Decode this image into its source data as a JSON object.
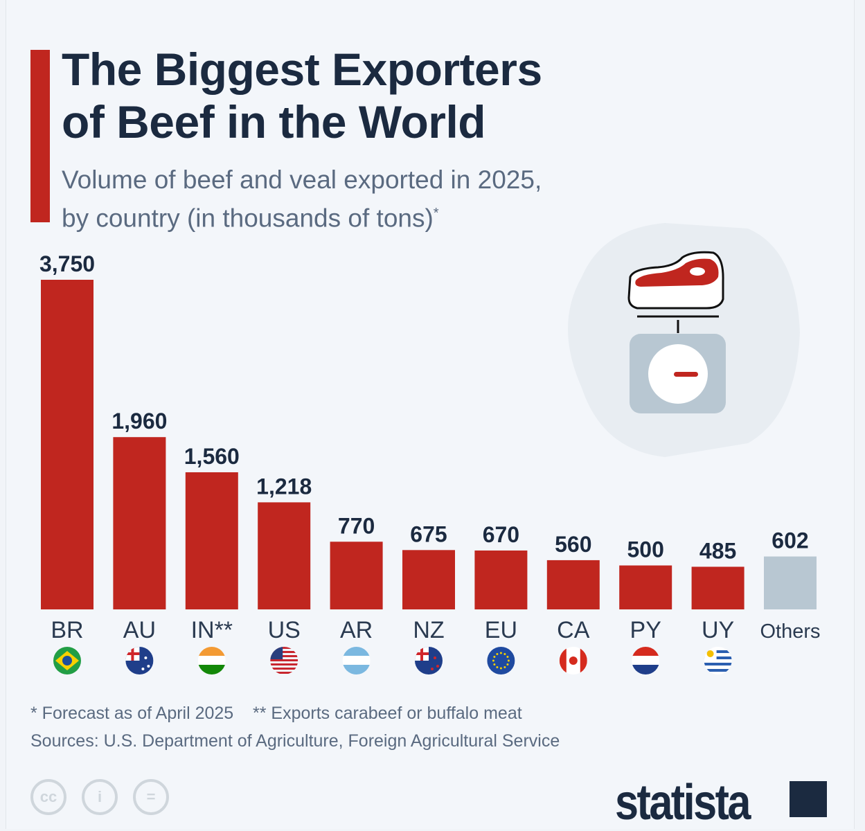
{
  "header": {
    "title_line1": "The Biggest Exporters",
    "title_line2": "of Beef in the World",
    "subtitle_line1": "Volume of beef and veal exported in 2025,",
    "subtitle_line2": "by country (in thousands of tons)",
    "subtitle_mark": "*"
  },
  "colors": {
    "accent": "#c0261f",
    "bar": "#c0261f",
    "others_bar": "#b8c7d2",
    "title": "#1b2a40"
  },
  "chart_data": {
    "type": "bar",
    "categories": [
      "BR",
      "AU",
      "IN**",
      "US",
      "AR",
      "NZ",
      "EU",
      "CA",
      "PY",
      "UY",
      "Others"
    ],
    "values": [
      3750,
      1960,
      1560,
      1218,
      770,
      675,
      670,
      560,
      500,
      485,
      602
    ],
    "value_labels": [
      "3,750",
      "1,960",
      "1,560",
      "1,218",
      "770",
      "675",
      "670",
      "560",
      "500",
      "485",
      "602"
    ],
    "flags": [
      "brazil-flag",
      "australia-flag",
      "india-flag",
      "usa-flag",
      "argentina-flag",
      "new-zealand-flag",
      "eu-flag",
      "canada-flag",
      "paraguay-flag",
      "uruguay-flag",
      null
    ],
    "unit": "thousands of tons",
    "grid": false,
    "title": "The Biggest Exporters of Beef in the World"
  },
  "footer": {
    "note1": "* Forecast as of April 2025",
    "note2": "** Exports carabeef or buffalo meat",
    "sources": "Sources: U.S. Department of Agriculture, Foreign Agricultural Service",
    "license_icons": [
      "cc-icon",
      "attribution-icon",
      "no-derivatives-icon"
    ],
    "brand": "statista"
  }
}
